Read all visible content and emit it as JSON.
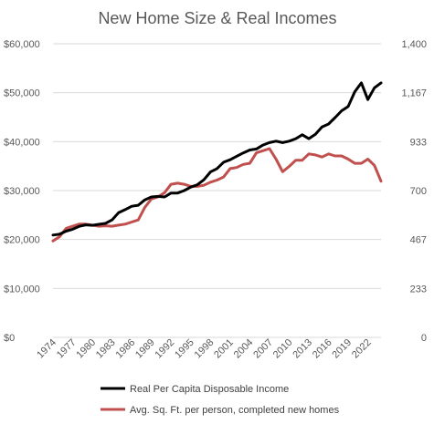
{
  "chart_data": {
    "type": "line",
    "title": "New Home Size & Real Incomes",
    "x": [
      1974,
      1975,
      1976,
      1977,
      1978,
      1979,
      1980,
      1981,
      1982,
      1983,
      1984,
      1985,
      1986,
      1987,
      1988,
      1989,
      1990,
      1991,
      1992,
      1993,
      1994,
      1995,
      1996,
      1997,
      1998,
      1999,
      2000,
      2001,
      2002,
      2003,
      2004,
      2005,
      2006,
      2007,
      2008,
      2009,
      2010,
      2011,
      2012,
      2013,
      2014,
      2015,
      2016,
      2017,
      2018,
      2019,
      2020,
      2021,
      2022,
      2023,
      2024
    ],
    "x_tick_labels": [
      "1974",
      "1977",
      "1980",
      "1983",
      "1986",
      "1989",
      "1992",
      "1995",
      "1998",
      "2001",
      "2004",
      "2007",
      "2010",
      "2013",
      "2016",
      "2019",
      "2022"
    ],
    "y_left": {
      "lim": [
        0,
        60000
      ],
      "ticks": [
        0,
        10000,
        20000,
        30000,
        40000,
        50000,
        60000
      ],
      "tick_labels": [
        "$0",
        "$10,000",
        "$20,000",
        "$30,000",
        "$40,000",
        "$50,000",
        "$60,000"
      ]
    },
    "y_right": {
      "lim": [
        0,
        1400
      ],
      "ticks": [
        0,
        233,
        467,
        700,
        933,
        1167,
        1400
      ],
      "tick_labels": [
        "0",
        "233",
        "467",
        "700",
        "933",
        "1,167",
        "1,400"
      ]
    },
    "grid": "horizontal",
    "legend_position": "bottom",
    "series": [
      {
        "name": "Real Per Capita Disposable Income",
        "color": "#000000",
        "axis": "left",
        "values": [
          20900,
          21100,
          21700,
          22100,
          22700,
          23000,
          22900,
          23100,
          23300,
          24000,
          25500,
          26100,
          26800,
          27000,
          28100,
          28700,
          28800,
          28700,
          29500,
          29500,
          30000,
          30700,
          31200,
          32200,
          33800,
          34500,
          35800,
          36300,
          37000,
          37700,
          38300,
          38500,
          39300,
          39800,
          40100,
          39800,
          40100,
          40600,
          41400,
          40600,
          41500,
          43000,
          43600,
          44900,
          46300,
          47200,
          50200,
          52000,
          48600,
          51000,
          52000
        ]
      },
      {
        "name": "Avg. Sq. Ft. per person, completed new homes",
        "color": "#c0504d",
        "axis": "right",
        "values": [
          460,
          480,
          520,
          530,
          540,
          540,
          535,
          530,
          532,
          530,
          535,
          540,
          550,
          560,
          620,
          660,
          670,
          690,
          730,
          735,
          730,
          720,
          720,
          725,
          740,
          750,
          765,
          805,
          810,
          825,
          830,
          880,
          890,
          900,
          850,
          790,
          815,
          845,
          845,
          875,
          870,
          860,
          875,
          865,
          865,
          850,
          830,
          830,
          850,
          820,
          745
        ]
      }
    ]
  }
}
